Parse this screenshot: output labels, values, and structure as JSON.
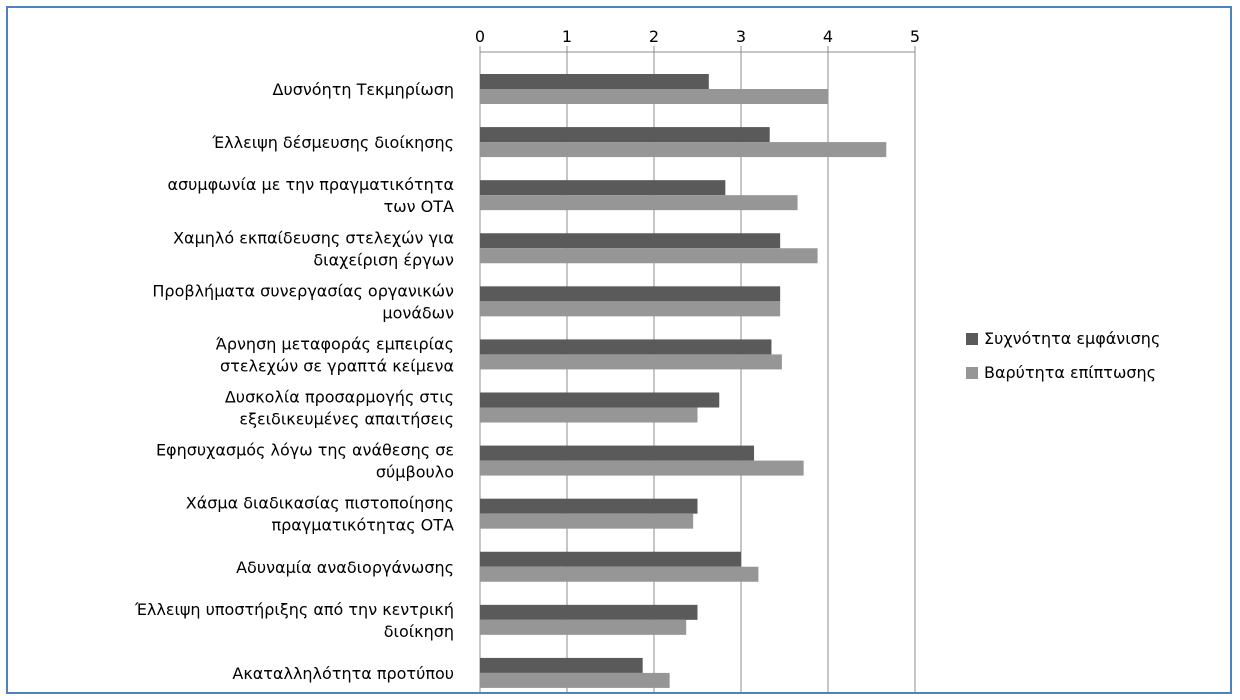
{
  "chart_data": {
    "type": "bar",
    "orientation": "horizontal",
    "categories": [
      [
        "Δυσνόητη Τεκμηρίωση"
      ],
      [
        "Έλλειψη δέσμευσης διοίκησης"
      ],
      [
        "ασυμφωνία με την πραγματικότητα",
        "των ΟΤΑ"
      ],
      [
        "Χαμηλό εκπαίδευσης στελεχών για",
        "διαχείριση έργων"
      ],
      [
        "Προβλήματα συνεργασίας οργανικών",
        "μονάδων"
      ],
      [
        "Άρνηση  μεταφοράς εμπειρίας",
        "στελεχών σε γραπτά κείμενα"
      ],
      [
        "Δυσκολία προσαρμογής στις",
        "εξειδικευμένες απαιτήσεις"
      ],
      [
        "Εφησυχασμός λόγω της ανάθεσης σε",
        "σύμβουλο"
      ],
      [
        "Χάσμα διαδικασίας πιστοποίησης",
        "πραγματικότητας ΟΤΑ"
      ],
      [
        "Αδυναμία αναδιοργάνωσης"
      ],
      [
        "Έλλειψη υποστήριξης από την κεντρική",
        "διοίκηση"
      ],
      [
        "Ακαταλληλότητα προτύπου"
      ]
    ],
    "series": [
      {
        "name": "Συχνότητα εμφάνισης",
        "color": "#5a5a5a",
        "values": [
          2.63,
          3.33,
          2.82,
          3.45,
          3.45,
          3.35,
          2.75,
          3.15,
          2.5,
          3.0,
          2.5,
          1.87
        ]
      },
      {
        "name": "Βαρύτητα επίπτωσης",
        "color": "#969696",
        "values": [
          4.0,
          4.67,
          3.65,
          3.88,
          3.45,
          3.47,
          2.5,
          3.72,
          2.45,
          3.2,
          2.37,
          2.18
        ]
      }
    ],
    "xlim": [
      0,
      5
    ],
    "xticks": [
      "0",
      "1",
      "2",
      "3",
      "4",
      "5"
    ],
    "x_axis_position": "top",
    "grid": true,
    "legend_position": "right"
  }
}
